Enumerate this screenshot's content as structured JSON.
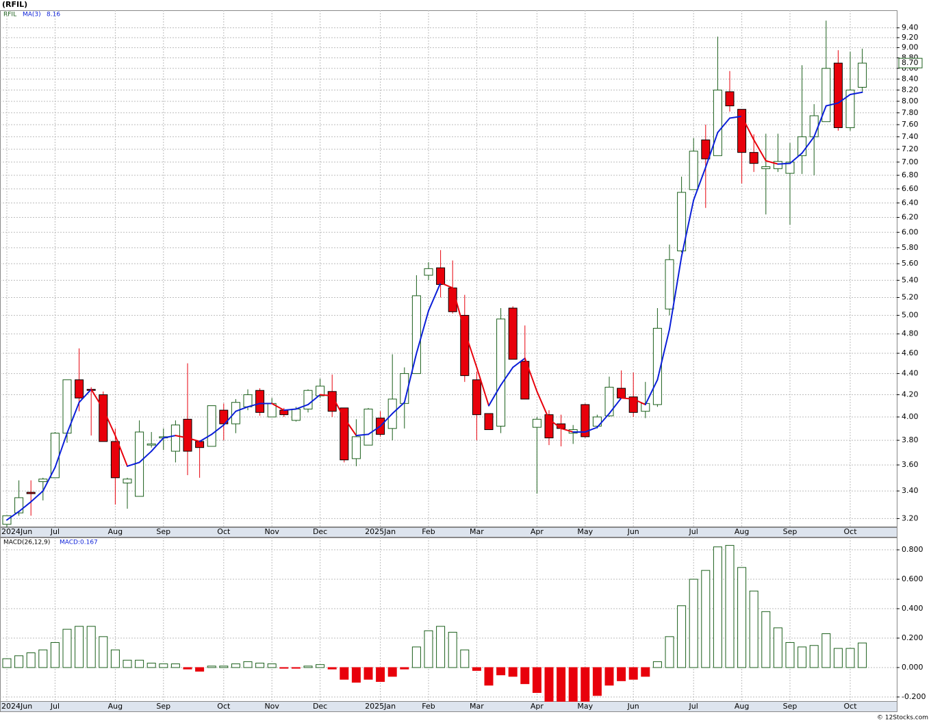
{
  "chart_data": [
    {
      "type": "candlestick",
      "title": "(RFIL)",
      "symbol": "RFIL",
      "categories": [
        "2024Jun",
        null,
        null,
        null,
        "Jul",
        null,
        null,
        null,
        null,
        "Aug",
        null,
        null,
        null,
        "Sep",
        null,
        null,
        null,
        null,
        "Oct",
        null,
        null,
        null,
        "Nov",
        null,
        null,
        null,
        "Dec",
        null,
        null,
        null,
        null,
        "2025Jan",
        null,
        null,
        null,
        "Feb",
        null,
        null,
        null,
        "Mar",
        null,
        null,
        null,
        null,
        "Apr",
        null,
        null,
        null,
        "May",
        null,
        null,
        null,
        "Jun",
        null,
        null,
        null,
        null,
        "Jul",
        null,
        null,
        null,
        "Aug",
        null,
        null,
        null,
        "Sep",
        null,
        null,
        null,
        null,
        "Oct",
        null
      ],
      "open": [
        3.16,
        3.24,
        3.39,
        3.47,
        3.5,
        3.86,
        4.34,
        4.25,
        4.2,
        3.79,
        3.46,
        3.36,
        3.76,
        3.82,
        3.71,
        3.98,
        3.79,
        3.75,
        4.06,
        3.94,
        4.09,
        4.24,
        4.0,
        4.06,
        3.97,
        4.07,
        4.19,
        4.23,
        4.08,
        3.65,
        3.76,
        3.99,
        3.9,
        4.12,
        4.4,
        5.46,
        5.55,
        5.31,
        5.0,
        4.34,
        4.03,
        3.92,
        5.08,
        4.52,
        3.91,
        4.02,
        3.94,
        3.86,
        4.11,
        3.92,
        4.01,
        4.26,
        4.18,
        4.05,
        4.11,
        5.07,
        5.76,
        6.59,
        7.35,
        7.1,
        8.17,
        7.86,
        7.15,
        6.9,
        6.9,
        6.83,
        7.1,
        7.4,
        7.65,
        8.7,
        7.55,
        8.25
      ],
      "high": [
        3.22,
        3.48,
        3.48,
        3.5,
        3.87,
        4.34,
        4.65,
        4.27,
        4.23,
        3.9,
        3.5,
        3.97,
        3.87,
        3.9,
        3.97,
        4.5,
        3.8,
        4.1,
        4.12,
        4.16,
        4.25,
        4.26,
        4.17,
        4.08,
        4.09,
        4.25,
        4.35,
        4.39,
        4.08,
        3.98,
        4.08,
        4.05,
        4.59,
        4.46,
        5.46,
        5.62,
        5.77,
        5.64,
        5.23,
        4.42,
        4.03,
        5.08,
        5.1,
        4.89,
        4.0,
        4.06,
        4.02,
        3.93,
        4.12,
        4.02,
        4.37,
        4.43,
        4.41,
        4.32,
        5.08,
        5.84,
        6.78,
        7.38,
        7.6,
        9.22,
        8.55,
        7.86,
        7.44,
        7.45,
        7.45,
        7.3,
        8.66,
        7.95,
        9.55,
        8.95,
        8.92,
        8.98
      ],
      "low": [
        3.14,
        3.22,
        3.22,
        3.33,
        3.5,
        3.78,
        4.05,
        3.84,
        3.79,
        3.3,
        3.27,
        3.36,
        3.74,
        3.72,
        3.62,
        3.52,
        3.5,
        3.75,
        3.8,
        3.86,
        4.06,
        4.01,
        4.0,
        4.0,
        3.96,
        4.04,
        4.17,
        4.0,
        3.62,
        3.59,
        3.76,
        3.83,
        3.8,
        3.9,
        4.4,
        5.4,
        5.2,
        5.02,
        4.32,
        3.8,
        3.89,
        3.86,
        4.54,
        4.16,
        3.38,
        3.76,
        3.75,
        3.77,
        3.82,
        3.9,
        4.0,
        4.17,
        4.0,
        3.99,
        4.09,
        5.0,
        5.74,
        6.59,
        6.33,
        7.1,
        7.82,
        6.68,
        6.85,
        6.24,
        6.85,
        6.1,
        6.82,
        6.8,
        7.65,
        7.5,
        7.5,
        8.17
      ],
      "close": [
        3.22,
        3.35,
        3.38,
        3.49,
        3.86,
        4.34,
        4.17,
        4.24,
        3.79,
        3.5,
        3.49,
        3.87,
        3.77,
        3.83,
        3.93,
        3.71,
        3.74,
        4.1,
        3.94,
        4.13,
        4.2,
        4.04,
        4.12,
        4.02,
        4.07,
        4.24,
        4.28,
        4.05,
        3.64,
        3.83,
        4.07,
        3.85,
        4.16,
        4.4,
        5.22,
        5.54,
        5.35,
        5.04,
        4.38,
        4.02,
        3.89,
        4.96,
        4.54,
        4.16,
        3.98,
        3.82,
        3.9,
        3.89,
        3.83,
        4.0,
        4.27,
        4.17,
        4.04,
        4.12,
        4.86,
        5.65,
        6.55,
        7.17,
        7.05,
        8.2,
        7.92,
        7.15,
        6.98,
        6.93,
        7.01,
        7.0,
        7.4,
        7.75,
        8.6,
        7.55,
        8.2,
        8.7
      ],
      "ma_name": "MA(3)",
      "ma_last_label": "8.16",
      "ma_values": [
        3.19,
        3.25,
        3.32,
        3.4,
        3.58,
        3.86,
        4.13,
        4.25,
        4.07,
        3.84,
        3.59,
        3.62,
        3.71,
        3.82,
        3.84,
        3.82,
        3.79,
        3.85,
        3.93,
        4.05,
        4.09,
        4.12,
        4.12,
        4.06,
        4.07,
        4.11,
        4.2,
        4.19,
        3.99,
        3.84,
        3.85,
        3.92,
        4.03,
        4.13,
        4.6,
        5.05,
        5.37,
        5.31,
        4.83,
        4.46,
        4.1,
        4.29,
        4.46,
        4.55,
        4.23,
        3.98,
        3.9,
        3.87,
        3.87,
        3.91,
        4.03,
        4.17,
        4.16,
        4.11,
        4.34,
        4.85,
        5.69,
        6.44,
        6.92,
        7.47,
        7.71,
        7.74,
        7.35,
        7.02,
        6.97,
        6.98,
        7.14,
        7.4,
        7.92,
        7.97,
        8.12,
        8.16
      ],
      "last_price_label": "8.70",
      "up_color": "#1a5e1a",
      "down_color": "#e8000b",
      "ma_up_color": "#0a1ed8",
      "ma_down_color": "#e8000b",
      "log_scale": true,
      "grid": true,
      "ylim": [
        3.14,
        9.77
      ],
      "yticks": [
        {
          "value": 3.2,
          "label": "3.20"
        },
        {
          "value": 3.4,
          "label": "3.40"
        },
        {
          "value": 3.6,
          "label": "3.60"
        },
        {
          "value": 3.8,
          "label": "3.80"
        },
        {
          "value": 4.0,
          "label": "4.00"
        },
        {
          "value": 4.2,
          "label": "4.20"
        },
        {
          "value": 4.4,
          "label": "4.40"
        },
        {
          "value": 4.6,
          "label": "4.60"
        },
        {
          "value": 4.8,
          "label": "4.80"
        },
        {
          "value": 5.0,
          "label": "5.00"
        },
        {
          "value": 5.2,
          "label": "5.20"
        },
        {
          "value": 5.4,
          "label": "5.40"
        },
        {
          "value": 5.6,
          "label": "5.60"
        },
        {
          "value": 5.8,
          "label": "5.80"
        },
        {
          "value": 6.0,
          "label": "6.00"
        },
        {
          "value": 6.2,
          "label": "6.20"
        },
        {
          "value": 6.4,
          "label": "6.40"
        },
        {
          "value": 6.6,
          "label": "6.60"
        },
        {
          "value": 6.8,
          "label": "6.80"
        },
        {
          "value": 7.0,
          "label": "7.00"
        },
        {
          "value": 7.2,
          "label": "7.20"
        },
        {
          "value": 7.4,
          "label": "7.40"
        },
        {
          "value": 7.6,
          "label": "7.60"
        },
        {
          "value": 7.8,
          "label": "7.80"
        },
        {
          "value": 8.0,
          "label": "8.00"
        },
        {
          "value": 8.2,
          "label": "8.20"
        },
        {
          "value": 8.4,
          "label": "8.40"
        },
        {
          "value": 8.6,
          "label": "8.60"
        },
        {
          "value": 8.8,
          "label": "8.80"
        },
        {
          "value": 9.0,
          "label": "9.00"
        },
        {
          "value": 9.2,
          "label": "9.20"
        },
        {
          "value": 9.4,
          "label": "9.40"
        }
      ]
    },
    {
      "type": "bar",
      "name": "MACD(26,12,9)",
      "value_text": "MACD:0.167",
      "up_color": "#1a5e1a",
      "down_color": "#e8000b",
      "grid": true,
      "values": [
        0.06,
        0.08,
        0.1,
        0.12,
        0.17,
        0.26,
        0.28,
        0.28,
        0.21,
        0.12,
        0.05,
        0.05,
        0.03,
        0.025,
        0.025,
        -0.01,
        -0.025,
        0.01,
        0.01,
        0.025,
        0.04,
        0.03,
        0.025,
        -0.005,
        -0.005,
        0.01,
        0.02,
        -0.01,
        -0.08,
        -0.1,
        -0.08,
        -0.095,
        -0.06,
        -0.01,
        0.14,
        0.25,
        0.28,
        0.24,
        0.12,
        -0.02,
        -0.12,
        -0.05,
        -0.06,
        -0.11,
        -0.17,
        -0.23,
        -0.23,
        -0.23,
        -0.23,
        -0.19,
        -0.12,
        -0.09,
        -0.08,
        -0.06,
        0.04,
        0.21,
        0.42,
        0.6,
        0.66,
        0.82,
        0.83,
        0.68,
        0.52,
        0.38,
        0.27,
        0.17,
        0.14,
        0.15,
        0.23,
        0.13,
        0.13,
        0.167
      ],
      "ylim": [
        -0.228,
        0.884
      ],
      "yticks": [
        {
          "value": -0.2,
          "label": "-0.200"
        },
        {
          "value": 0,
          "label": "0.000"
        },
        {
          "value": 0.2,
          "label": "0.200"
        },
        {
          "value": 0.4,
          "label": "0.400"
        },
        {
          "value": 0.6,
          "label": "0.600"
        },
        {
          "value": 0.8,
          "label": "0.800"
        }
      ]
    }
  ],
  "footer": "© 12Stocks.com"
}
